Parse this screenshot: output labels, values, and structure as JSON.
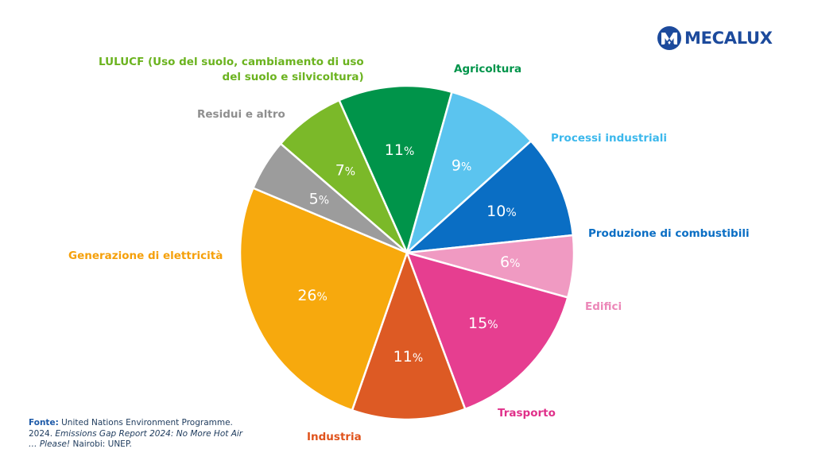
{
  "brand": {
    "name": "MECALUX",
    "color": "#1c4a9c",
    "icon": "mecalux-logo-icon"
  },
  "source": {
    "label": "Fonte:",
    "text_1": "United Nations Environment Programme. 2024.",
    "italic": "Emissions Gap Report 2024: No More Hot Air … Please!",
    "text_2": "Nairobi: UNEP."
  },
  "chart_data": {
    "type": "pie",
    "start_angle_deg": -24,
    "direction": "clockwise",
    "slices": [
      {
        "id": "agricoltura",
        "label": "Agricoltura",
        "value": 11,
        "color": "#00944a",
        "label_color": "#00944a"
      },
      {
        "id": "processi-industriali",
        "label": "Processi industriali",
        "value": 9,
        "color": "#5bc4ef",
        "label_color": "#3cb8ec"
      },
      {
        "id": "produzione-di-combustibili",
        "label": "Produzione di combustibili",
        "value": 10,
        "color": "#0a6ec4",
        "label_color": "#0a6ec4"
      },
      {
        "id": "edifici",
        "label": "Edifici",
        "value": 6,
        "color": "#f09ac2",
        "label_color": "#ec87b8"
      },
      {
        "id": "trasporto",
        "label": "Trasporto",
        "value": 15,
        "color": "#e63e90",
        "label_color": "#e0308a"
      },
      {
        "id": "industria",
        "label": "Industria",
        "value": 11,
        "color": "#dd5a24",
        "label_color": "#e0531c"
      },
      {
        "id": "generazione-di-elettricita",
        "label": "Generazione di elettricità",
        "value": 26,
        "color": "#f7a90d",
        "label_color": "#f5a00a"
      },
      {
        "id": "residui-e-altro",
        "label": "Residui e altro",
        "value": 5,
        "color": "#9c9c9c",
        "label_color": "#8f8f8f"
      },
      {
        "id": "lulucf",
        "label": "LULUCF (Uso del suolo, cambiamento di uso del suolo e silvicoltura)",
        "label_lines": [
          "LULUCF (Uso del suolo, cambiamento di uso",
          "del suolo e silvicoltura)"
        ],
        "value": 7,
        "color": "#7bb929",
        "label_color": "#6bb31f"
      }
    ]
  }
}
